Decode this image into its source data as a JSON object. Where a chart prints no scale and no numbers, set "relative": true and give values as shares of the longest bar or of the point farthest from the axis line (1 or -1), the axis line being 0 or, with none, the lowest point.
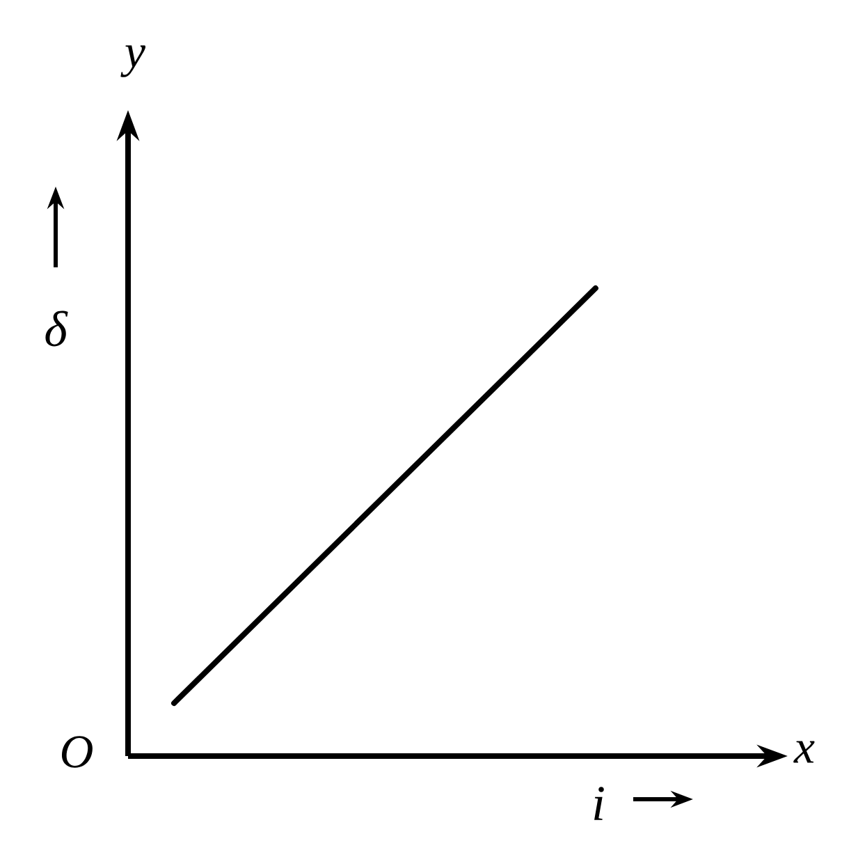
{
  "chart_data": {
    "type": "line",
    "relative": true,
    "xlabel": "i",
    "ylabel": "δ",
    "annotations": [
      "x",
      "y",
      "O"
    ],
    "categories": [
      null,
      null
    ],
    "series": [
      {
        "color": "#000000",
        "values": [
          0.113,
          1
        ]
      }
    ]
  }
}
